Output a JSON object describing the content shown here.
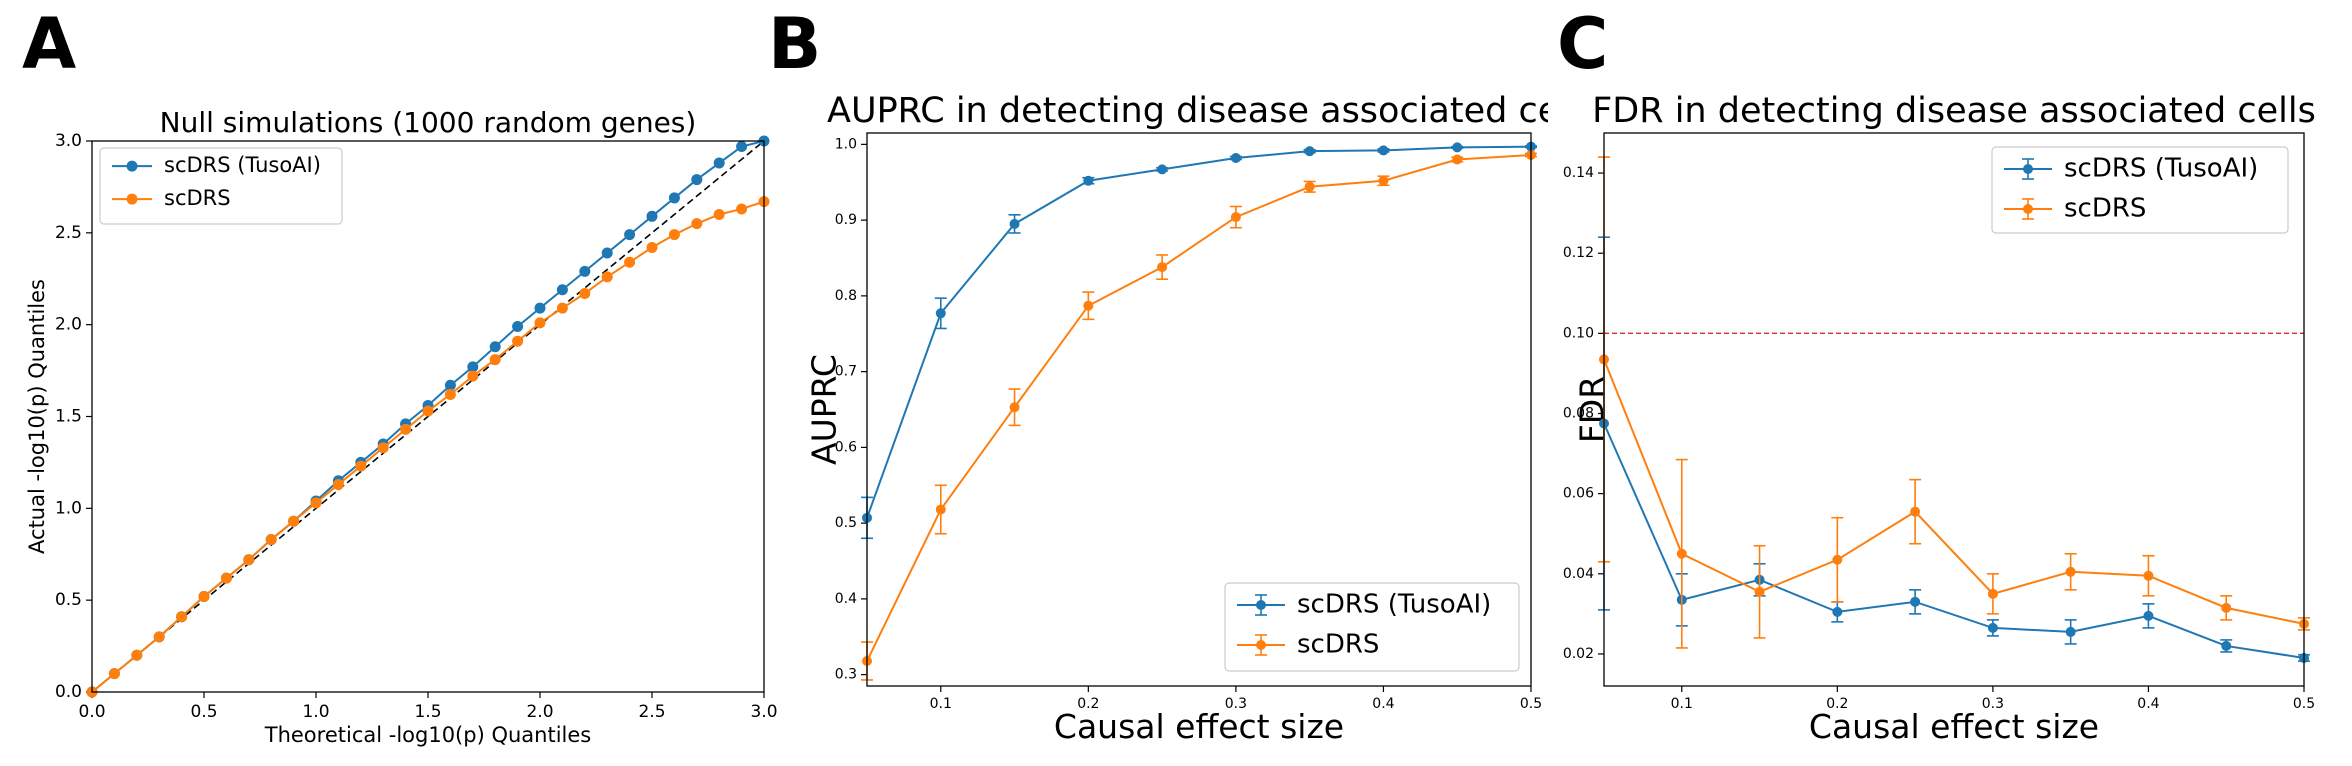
{
  "colors": {
    "blue": "#1f77b4",
    "orange": "#ff7f0e",
    "red": "#d62728",
    "black": "#000000"
  },
  "chart_data": [
    {
      "panel_label": "A",
      "type": "line",
      "title": "Null simulations (1000 random genes)",
      "xlabel": "Theoretical -log10(p) Quantiles",
      "ylabel": "Actual -log10(p) Quantiles",
      "xlim": [
        0,
        3
      ],
      "ylim": [
        0,
        3
      ],
      "xticks": [
        "0.0",
        "0.5",
        "1.0",
        "1.5",
        "2.0",
        "2.5",
        "3.0"
      ],
      "yticks": [
        "0.0",
        "0.5",
        "1.0",
        "1.5",
        "2.0",
        "2.5",
        "3.0"
      ],
      "legend_position": "top-left",
      "reference_line": "y = x (dashed)",
      "x": [
        0.0,
        0.1,
        0.2,
        0.3,
        0.4,
        0.5,
        0.6,
        0.7,
        0.8,
        0.9,
        1.0,
        1.1,
        1.2,
        1.3,
        1.4,
        1.5,
        1.6,
        1.7,
        1.8,
        1.9,
        2.0,
        2.1,
        2.2,
        2.3,
        2.4,
        2.5,
        2.6,
        2.7,
        2.8,
        2.9,
        3.0
      ],
      "series": [
        {
          "name": "scDRS (TusoAI)",
          "color": "#1f77b4",
          "values": [
            0.0,
            0.1,
            0.2,
            0.3,
            0.41,
            0.52,
            0.62,
            0.72,
            0.83,
            0.93,
            1.04,
            1.15,
            1.25,
            1.35,
            1.46,
            1.56,
            1.67,
            1.77,
            1.88,
            1.99,
            2.09,
            2.19,
            2.29,
            2.39,
            2.49,
            2.59,
            2.69,
            2.79,
            2.88,
            2.97,
            3.0
          ]
        },
        {
          "name": "scDRS",
          "color": "#ff7f0e",
          "values": [
            0.0,
            0.1,
            0.2,
            0.3,
            0.41,
            0.52,
            0.62,
            0.72,
            0.83,
            0.93,
            1.03,
            1.13,
            1.23,
            1.33,
            1.43,
            1.53,
            1.62,
            1.72,
            1.81,
            1.91,
            2.01,
            2.09,
            2.17,
            2.26,
            2.34,
            2.42,
            2.49,
            2.55,
            2.6,
            2.63,
            2.67
          ]
        }
      ]
    },
    {
      "panel_label": "B",
      "type": "line",
      "title": "AUPRC in detecting disease associated cel",
      "xlabel": "Causal effect size",
      "ylabel": "AUPRC",
      "xlim": [
        0.05,
        0.5
      ],
      "ylim": [
        0.285,
        1.015
      ],
      "xticks": [
        "0.1",
        "0.2",
        "0.3",
        "0.4",
        "0.5"
      ],
      "yticks": [
        "0.3",
        "0.4",
        "0.5",
        "0.6",
        "0.7",
        "0.8",
        "0.9",
        "1.0"
      ],
      "legend_position": "bottom-right",
      "x": [
        0.05,
        0.1,
        0.15,
        0.2,
        0.25,
        0.3,
        0.35,
        0.4,
        0.45,
        0.5
      ],
      "series": [
        {
          "name": "scDRS (TusoAI)",
          "color": "#1f77b4",
          "values": [
            0.507,
            0.777,
            0.895,
            0.952,
            0.967,
            0.982,
            0.991,
            0.992,
            0.996,
            0.997
          ],
          "errors": [
            0.027,
            0.02,
            0.012,
            0.004,
            0.002,
            0.002,
            0.002,
            0.002,
            0.001,
            0.001
          ]
        },
        {
          "name": "scDRS",
          "color": "#ff7f0e",
          "values": [
            0.318,
            0.518,
            0.653,
            0.787,
            0.838,
            0.904,
            0.944,
            0.952,
            0.98,
            0.986
          ],
          "errors": [
            0.025,
            0.032,
            0.024,
            0.018,
            0.016,
            0.014,
            0.007,
            0.006,
            0.003,
            0.002
          ]
        }
      ]
    },
    {
      "panel_label": "C",
      "type": "line",
      "title": "FDR in detecting disease associated cells",
      "xlabel": "Causal effect size",
      "ylabel": "FDR",
      "xlim": [
        0.05,
        0.5
      ],
      "ylim": [
        0.012,
        0.15
      ],
      "xticks": [
        "0.1",
        "0.2",
        "0.3",
        "0.4",
        "0.5"
      ],
      "yticks": [
        "0.02",
        "0.04",
        "0.06",
        "0.08",
        "0.10",
        "0.12",
        "0.14"
      ],
      "legend_position": "top-right",
      "threshold_line": 0.1,
      "x": [
        0.05,
        0.1,
        0.15,
        0.2,
        0.25,
        0.3,
        0.35,
        0.4,
        0.45,
        0.5
      ],
      "series": [
        {
          "name": "scDRS (TusoAI)",
          "color": "#1f77b4",
          "values": [
            0.0775,
            0.0335,
            0.0385,
            0.0305,
            0.033,
            0.0265,
            0.0255,
            0.0295,
            0.022,
            0.019
          ],
          "errors": [
            0.0465,
            0.0065,
            0.004,
            0.0025,
            0.003,
            0.002,
            0.003,
            0.003,
            0.0015,
            0.0008
          ]
        },
        {
          "name": "scDRS",
          "color": "#ff7f0e",
          "values": [
            0.0935,
            0.045,
            0.0355,
            0.0435,
            0.0555,
            0.035,
            0.0405,
            0.0395,
            0.0315,
            0.0275
          ],
          "errors": [
            0.0505,
            0.0235,
            0.0115,
            0.0105,
            0.008,
            0.005,
            0.0045,
            0.005,
            0.003,
            0.0015
          ]
        }
      ]
    }
  ]
}
